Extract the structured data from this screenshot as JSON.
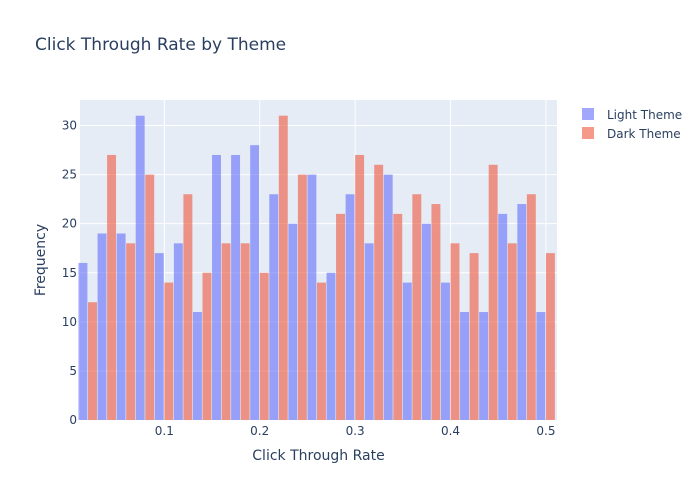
{
  "chart_data": {
    "type": "bar",
    "title": "Click Through Rate by Theme",
    "xlabel": "Click Through Rate",
    "ylabel": "Frequency",
    "bin_start": 0.01,
    "bin_width": 0.02,
    "xlim": [
      0.0116,
      0.5116
    ],
    "ylim": [
      0,
      32.6
    ],
    "x_ticks": [
      0.1,
      0.2,
      0.3,
      0.4,
      0.5
    ],
    "x_tick_labels": [
      "0.1",
      "0.2",
      "0.3",
      "0.4",
      "0.5"
    ],
    "y_ticks": [
      0,
      5,
      10,
      15,
      20,
      25,
      30
    ],
    "y_tick_labels": [
      "0",
      "5",
      "10",
      "15",
      "20",
      "25",
      "30"
    ],
    "grid": true,
    "legend_position": "top-right",
    "background": "#e5ecf6",
    "series": [
      {
        "name": "Light Theme",
        "color": "#636efa",
        "opacity": 0.6,
        "values": [
          16,
          19,
          19,
          31,
          17,
          18,
          11,
          27,
          27,
          28,
          23,
          20,
          25,
          15,
          23,
          18,
          25,
          14,
          20,
          14,
          11,
          11,
          21,
          22,
          11
        ]
      },
      {
        "name": "Dark Theme",
        "color": "#ef553b",
        "opacity": 0.6,
        "values": [
          12,
          27,
          18,
          25,
          14,
          23,
          15,
          18,
          18,
          15,
          31,
          25,
          14,
          21,
          27,
          26,
          21,
          23,
          22,
          18,
          17,
          26,
          18,
          23,
          17
        ]
      }
    ]
  }
}
